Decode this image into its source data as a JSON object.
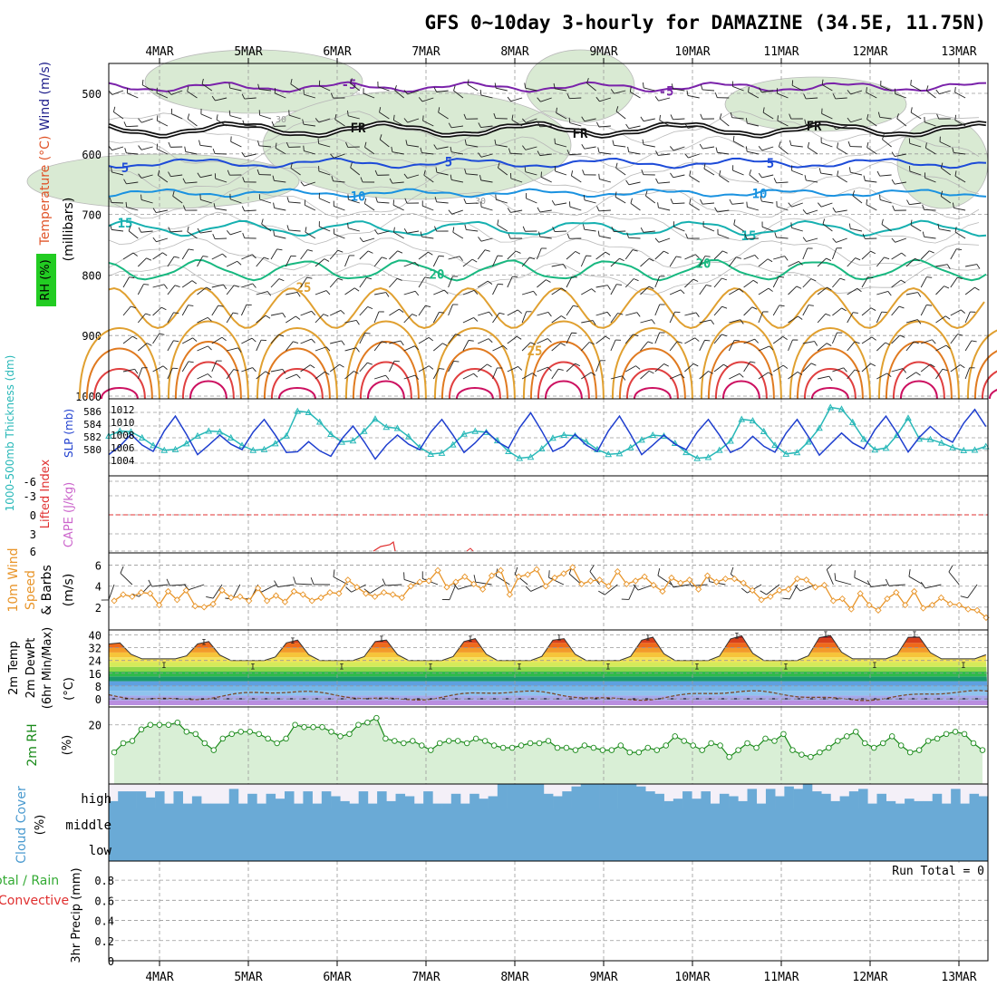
{
  "title": "GFS 0~10day 3-hourly for DAMAZINE (34.5E, 11.75N)",
  "dates": [
    "4MAR",
    "5MAR",
    "6MAR",
    "7MAR",
    "8MAR",
    "9MAR",
    "10MAR",
    "11MAR",
    "12MAR",
    "13MAR"
  ],
  "colors": {
    "grid": "#9a9a9a",
    "frame": "#000000",
    "rh_fill": "#d9ead3",
    "cloud": "#6aaad6",
    "cloud_bg": "#f4f0f8",
    "slp": "#1f3fcf",
    "thickness": "#28b8b8",
    "wind10": "#e8952a",
    "rh2m": "#1a8a1a",
    "li": "#e03030",
    "cape": "#cc66cc"
  },
  "panels": {
    "upper": {
      "ylabel_parts": [
        "Wind (m/s)",
        "Temperature (°C)"
      ],
      "rh_label": "RH (%)",
      "axis_label": "(millibars)",
      "ticks": [
        "500",
        "600",
        "700",
        "800",
        "900",
        "1000"
      ]
    },
    "slp": {
      "left_label": "1000-500mb Thickness (dm)",
      "right_label": "SLP (mb)",
      "ticks_left": [
        "586",
        "584",
        "582",
        "580"
      ],
      "ticks_right": [
        "1012",
        "1010",
        "1008",
        "1006",
        "1004"
      ]
    },
    "li": {
      "left_label": "Lifted Index",
      "right_label": "CAPE (J/kg)",
      "ticks": [
        "-6",
        "-3",
        "0",
        "3",
        "6"
      ]
    },
    "wind10": {
      "labels": [
        "10m Wind",
        "Speed",
        "& Barbs"
      ],
      "unit": "(m/s)",
      "ticks": [
        "6",
        "4",
        "2"
      ]
    },
    "temp2m": {
      "labels": [
        "2m Temp",
        "2m DewPt",
        "(6hr Min/Max)"
      ],
      "unit": "(°C)",
      "ticks": [
        "40",
        "32",
        "24",
        "16",
        "8",
        "0"
      ]
    },
    "rh2m": {
      "label": "2m RH",
      "unit": "(%)",
      "ticks": [
        "20"
      ]
    },
    "cloud": {
      "label": "Cloud Cover",
      "unit": "(%)",
      "levels": [
        "high",
        "middle",
        "low"
      ]
    },
    "precip": {
      "labels": [
        "Total / Rain",
        "Convective"
      ],
      "axis_label": "3hr Precip (mm)",
      "run_total": "Run Total = 0",
      "ticks": [
        "0.8",
        "0.6",
        "0.4",
        "0.2",
        "0"
      ]
    }
  },
  "contour_labels": {
    "minus5": "-5",
    "fr": "FR",
    "t5": "5",
    "t10": "10",
    "t15": "15",
    "t20": "20",
    "t25": "25",
    "rh30": "30"
  },
  "chart_data": [
    {
      "type": "line",
      "name": "1000-500mb Thickness (dm)",
      "x": [
        "4MAR",
        "5MAR",
        "6MAR",
        "7MAR",
        "8MAR",
        "9MAR",
        "10MAR",
        "11MAR",
        "12MAR",
        "13MAR"
      ],
      "daily_range_dm": [
        [
          581,
          583.5
        ],
        [
          581,
          583.5
        ],
        [
          582,
          586
        ],
        [
          580.5,
          584
        ],
        [
          580,
          583.5
        ],
        [
          580.5,
          583
        ],
        [
          580,
          583
        ],
        [
          580.5,
          585
        ],
        [
          581,
          586.5
        ],
        [
          581,
          582.5
        ]
      ],
      "ylim": [
        579,
        587
      ]
    },
    {
      "type": "line",
      "name": "SLP (mb)",
      "daily_range_mb": [
        [
          1004.5,
          1011.5
        ],
        [
          1005,
          1011
        ],
        [
          1004,
          1010
        ],
        [
          1005,
          1011
        ],
        [
          1005,
          1012
        ],
        [
          1004.5,
          1011.5
        ],
        [
          1005,
          1011
        ],
        [
          1004.5,
          1011
        ],
        [
          1005,
          1011.5
        ],
        [
          1006,
          1012.5
        ]
      ],
      "ylim": [
        1003,
        1013
      ]
    },
    {
      "type": "line",
      "name": "10m Wind Speed (m/s)",
      "values": [
        2.6,
        3.2,
        3.0,
        3.4,
        3.3,
        2.2,
        3.5,
        2.7,
        3.6,
        2.1,
        2.0,
        2.3,
        3.6,
        2.9,
        3.0,
        2.6,
        3.8,
        2.6,
        3.1,
        2.5,
        3.5,
        3.2,
        2.6,
        2.9,
        3.4,
        3.3,
        4.6,
        3.9,
        3.3,
        3.0,
        3.4,
        3.2,
        2.9,
        4.0,
        4.4,
        4.5,
        5.5,
        3.9,
        4.4,
        4.9,
        4.2,
        3.7,
        5.0,
        5.5,
        3.2,
        4.9,
        5.1,
        5.6,
        4.0,
        4.8,
        5.2,
        5.8,
        4.2,
        4.5,
        4.6,
        4.0,
        5.4,
        4.2,
        4.5,
        4.9,
        4.1,
        3.5,
        4.8,
        4.3,
        4.6,
        3.7,
        5.0,
        4.4,
        4.7,
        4.7,
        4.3,
        3.6,
        2.7,
        3.0,
        3.6,
        3.7,
        4.7,
        4.6,
        3.9,
        4.1,
        2.6,
        2.8,
        1.8,
        3.3,
        2.2,
        1.7,
        2.8,
        3.4,
        2.2,
        3.5,
        1.9,
        2.2,
        2.9,
        2.3,
        2.2,
        1.8,
        1.7,
        1.0
      ],
      "ylim": [
        0,
        7
      ]
    },
    {
      "type": "area",
      "name": "2m Temp (°C)",
      "daily_max": [
        36,
        37,
        38,
        38,
        39,
        39,
        40,
        41,
        41,
        40
      ],
      "daily_min": [
        25,
        24,
        24,
        24,
        24,
        24,
        24,
        24,
        25,
        25
      ],
      "ylim": [
        -4,
        42
      ]
    },
    {
      "type": "line",
      "name": "2m DewPt (°C)",
      "values_range": [
        -2,
        5
      ],
      "ylim": [
        -4,
        42
      ]
    },
    {
      "type": "line",
      "name": "2m RH (%)",
      "values": [
        8,
        12,
        13,
        18,
        20,
        20,
        20,
        21,
        17,
        16,
        12,
        9,
        14,
        16,
        17,
        17,
        16,
        14,
        12,
        14,
        20,
        19,
        19,
        19,
        17,
        15,
        16,
        20,
        21,
        23,
        14,
        13,
        12,
        13,
        11,
        9,
        12,
        13,
        13,
        12,
        14,
        13,
        11,
        10,
        10,
        11,
        12,
        12,
        13,
        10,
        10,
        9,
        11,
        10,
        9,
        9,
        11,
        8,
        8,
        10,
        9,
        11,
        15,
        13,
        11,
        9,
        12,
        11,
        6,
        9,
        12,
        10,
        14,
        13,
        16,
        9,
        7,
        6,
        8,
        10,
        13,
        15,
        17,
        12,
        10,
        12,
        15,
        11,
        8,
        9,
        13,
        14,
        16,
        17,
        16,
        12,
        9
      ],
      "ylim": [
        -5,
        27
      ]
    },
    {
      "type": "bar",
      "name": "High Cloud Cover (%)",
      "values": [
        30,
        70,
        70,
        70,
        45,
        70,
        20,
        70,
        20,
        50,
        20,
        20,
        20,
        80,
        20,
        60,
        20,
        60,
        40,
        70,
        20,
        70,
        20,
        70,
        50,
        30,
        20,
        70,
        20,
        70,
        30,
        60,
        50,
        20,
        70,
        20,
        20,
        60,
        20,
        60,
        40,
        50,
        100,
        100,
        100,
        100,
        100,
        60,
        50,
        70,
        90,
        100,
        100,
        100,
        100,
        100,
        100,
        90,
        70,
        60,
        30,
        40,
        70,
        40,
        70,
        20,
        60,
        50,
        30,
        80,
        20,
        80,
        50,
        90,
        80,
        100,
        70,
        60,
        30,
        50,
        70,
        80,
        20,
        60,
        30,
        20,
        40,
        30,
        30,
        60,
        20,
        80,
        20,
        60,
        50
      ],
      "ylim": [
        0,
        100
      ]
    },
    {
      "type": "bar",
      "name": "3hr Precip (mm)",
      "values": [],
      "ylim": [
        0,
        1
      ]
    }
  ]
}
